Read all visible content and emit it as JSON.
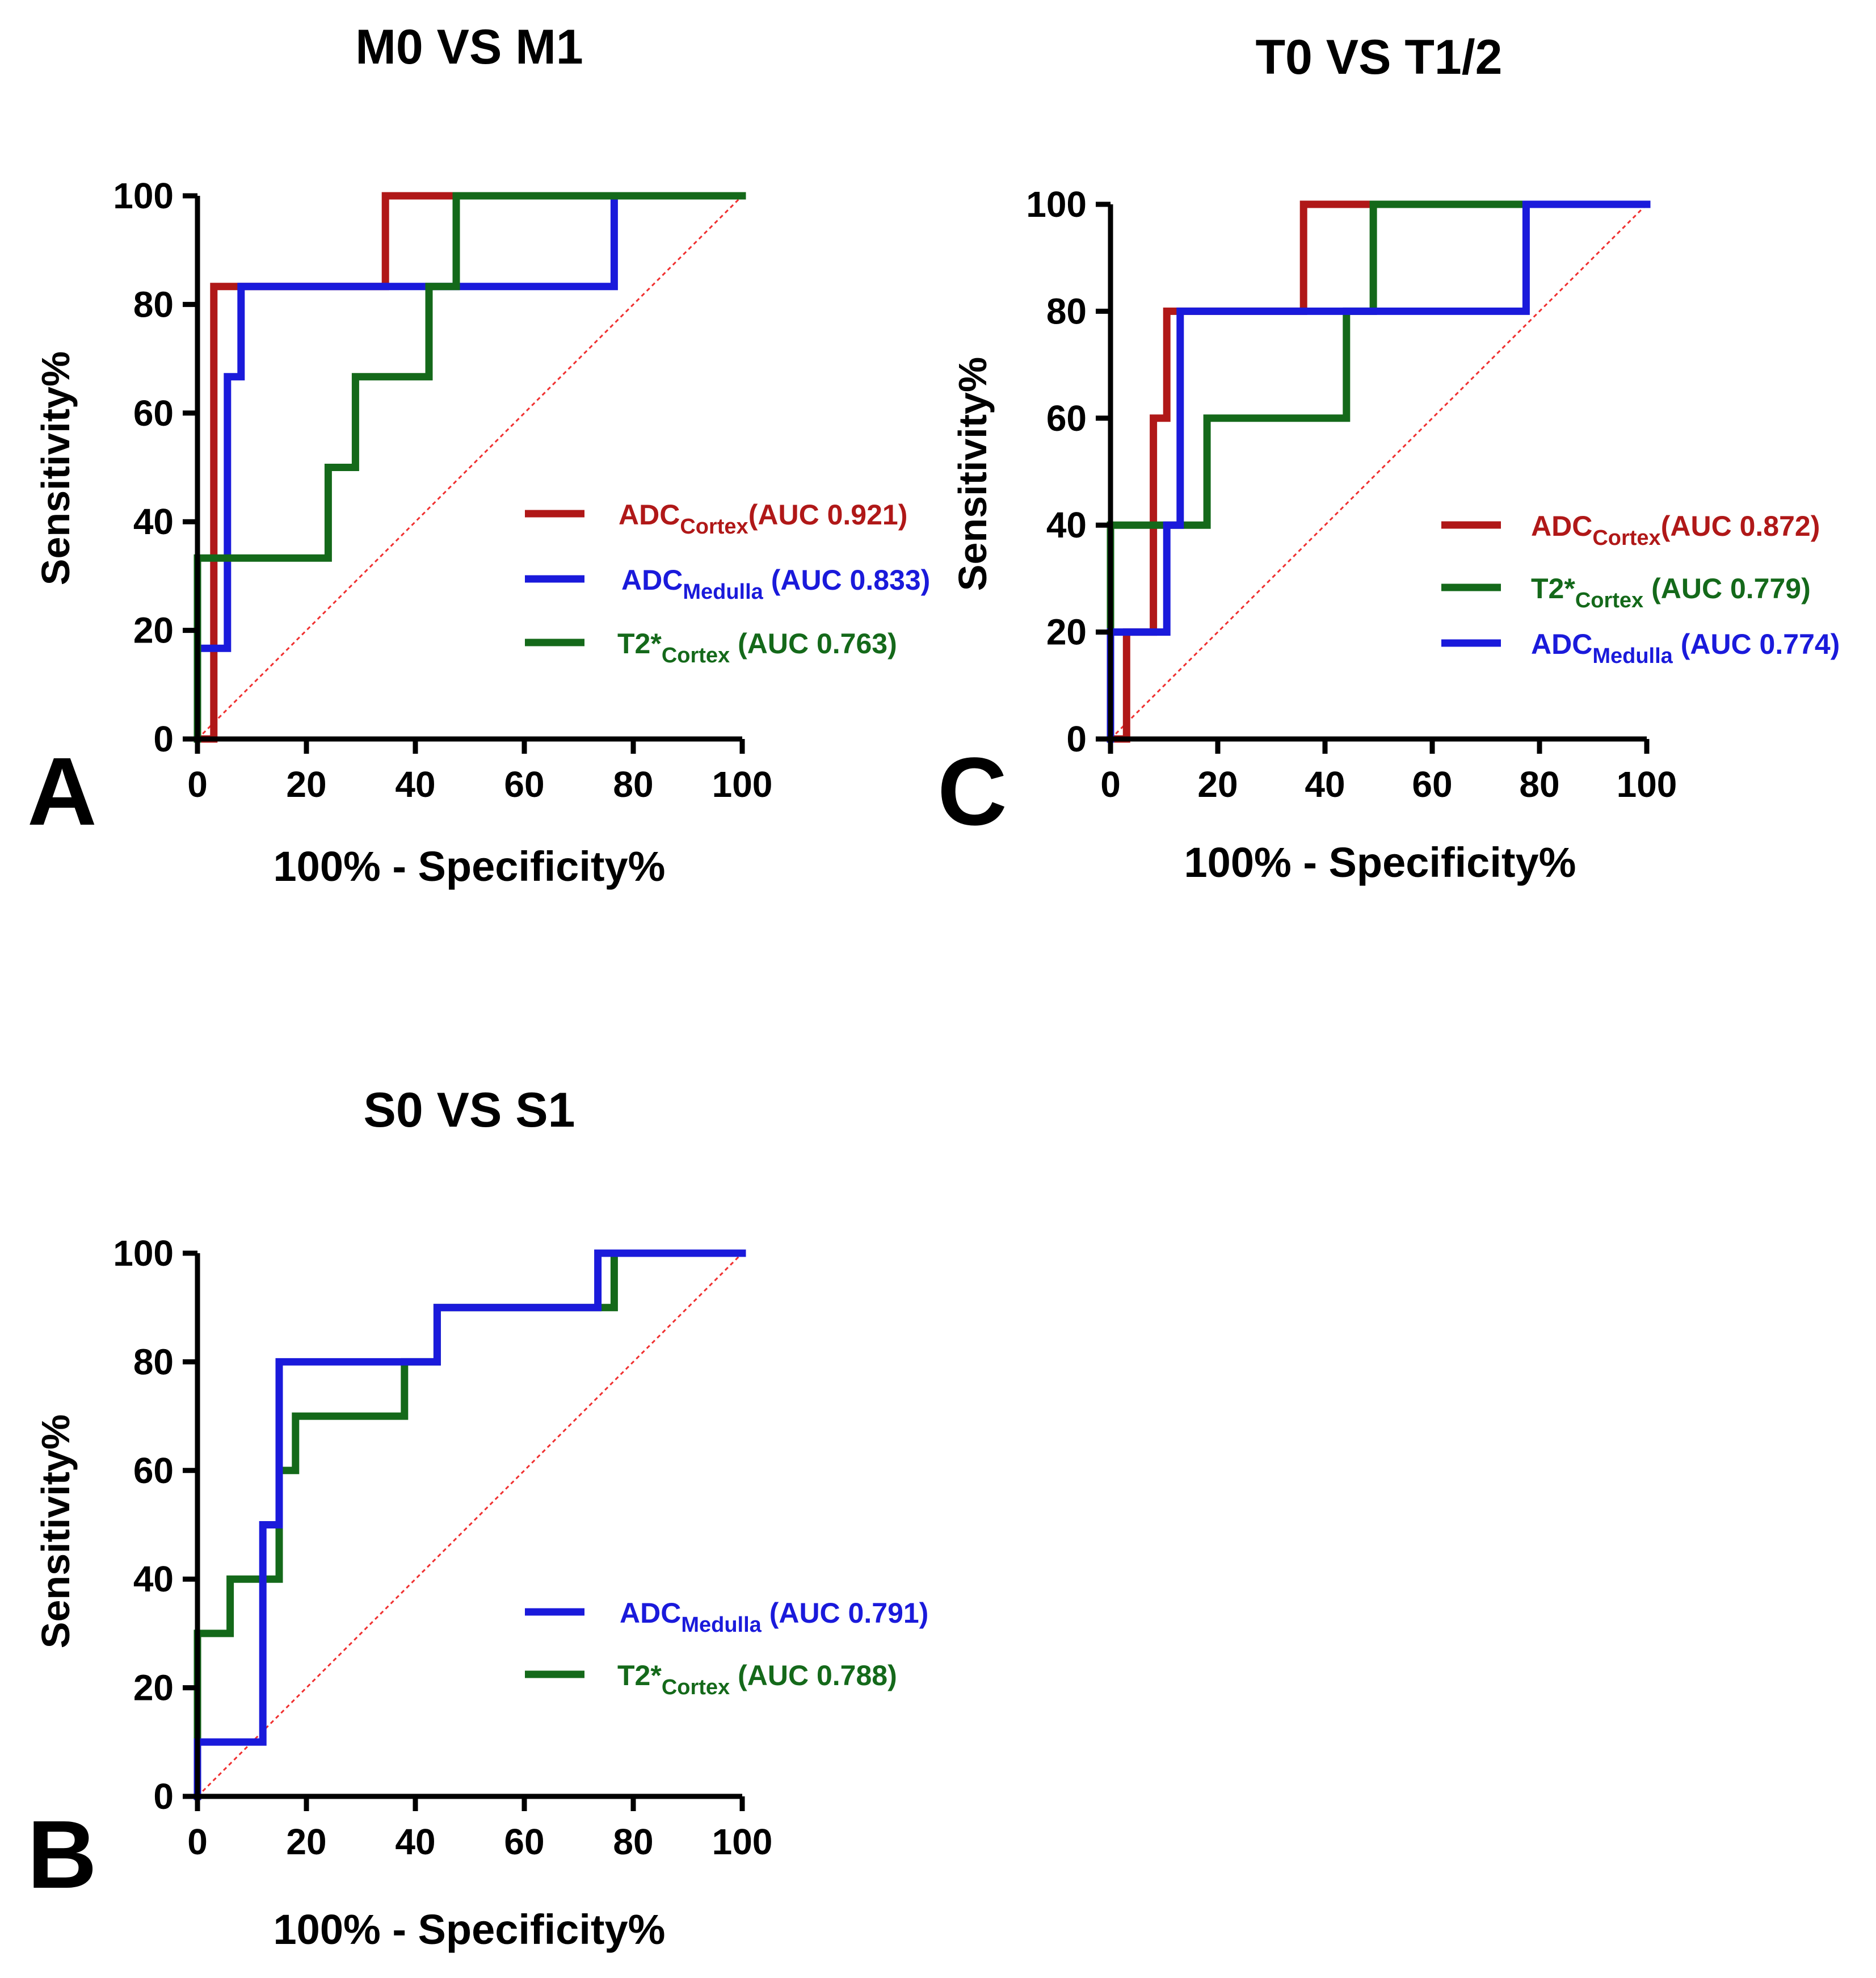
{
  "colors": {
    "red": "#b01818",
    "blue": "#1a1adb",
    "green": "#14691a",
    "diagonal": "#f03030",
    "axis": "#000000"
  },
  "chart_data": [
    {
      "id": "A",
      "type": "line",
      "panel_label": "A",
      "title": "M0 VS M1",
      "xlabel": "100% - Specificity%",
      "ylabel": "Sensitivity%",
      "xlim": [
        0,
        100
      ],
      "ylim": [
        0,
        100
      ],
      "xticks": [
        "0",
        "20",
        "40",
        "60",
        "80",
        "100"
      ],
      "yticks": [
        "0",
        "20",
        "40",
        "60",
        "80",
        "100"
      ],
      "reference_line": [
        [
          0,
          0
        ],
        [
          100,
          100
        ]
      ],
      "series": [
        {
          "key": "red",
          "legend_main": "ADC",
          "legend_sub": "Cortex",
          "legend_tail": "(AUC 0.921)",
          "points": [
            [
              0,
              0
            ],
            [
              3,
              0
            ],
            [
              3,
              83.3
            ],
            [
              34.5,
              83.3
            ],
            [
              34.5,
              100
            ],
            [
              100,
              100
            ]
          ]
        },
        {
          "key": "blue",
          "legend_main": "ADC",
          "legend_sub": "Medulla",
          "legend_tail": " (AUC 0.833)",
          "points": [
            [
              0,
              0
            ],
            [
              0,
              16.7
            ],
            [
              5.5,
              16.7
            ],
            [
              5.5,
              66.7
            ],
            [
              8,
              66.7
            ],
            [
              8,
              83.3
            ],
            [
              76.5,
              83.3
            ],
            [
              76.5,
              100
            ],
            [
              100,
              100
            ]
          ]
        },
        {
          "key": "green",
          "legend_main": "T2*",
          "legend_sub": "Cortex",
          "legend_tail": " (AUC 0.763)",
          "points": [
            [
              0,
              0
            ],
            [
              0,
              33.3
            ],
            [
              24,
              33.3
            ],
            [
              24,
              50
            ],
            [
              29,
              50
            ],
            [
              29,
              66.7
            ],
            [
              42.5,
              66.7
            ],
            [
              42.5,
              83.3
            ],
            [
              47.5,
              83.3
            ],
            [
              47.5,
              100
            ],
            [
              100,
              100
            ]
          ]
        }
      ]
    },
    {
      "id": "C",
      "type": "line",
      "panel_label": "C",
      "title": "T0 VS T1/2",
      "xlabel": "100% - Specificity%",
      "ylabel": "Sensitivity%",
      "xlim": [
        0,
        100
      ],
      "ylim": [
        0,
        100
      ],
      "xticks": [
        "0",
        "20",
        "40",
        "60",
        "80",
        "100"
      ],
      "yticks": [
        "0",
        "20",
        "40",
        "60",
        "80",
        "100"
      ],
      "reference_line": [
        [
          0,
          0
        ],
        [
          100,
          100
        ]
      ],
      "series": [
        {
          "key": "red",
          "legend_main": "ADC",
          "legend_sub": "Cortex",
          "legend_tail": "(AUC 0.872)",
          "points": [
            [
              0,
              0
            ],
            [
              3,
              0
            ],
            [
              3,
              20
            ],
            [
              8,
              20
            ],
            [
              8,
              60
            ],
            [
              10.5,
              60
            ],
            [
              10.5,
              80
            ],
            [
              36,
              80
            ],
            [
              36,
              100
            ],
            [
              100,
              100
            ]
          ]
        },
        {
          "key": "green",
          "legend_main": "T2*",
          "legend_sub": "Cortex",
          "legend_tail": " (AUC 0.779)",
          "points": [
            [
              0,
              0
            ],
            [
              0,
              40
            ],
            [
              18,
              40
            ],
            [
              18,
              60
            ],
            [
              44,
              60
            ],
            [
              44,
              80
            ],
            [
              49,
              80
            ],
            [
              49,
              100
            ],
            [
              100,
              100
            ]
          ]
        },
        {
          "key": "blue",
          "legend_main": "ADC",
          "legend_sub": "Medulla",
          "legend_tail": " (AUC 0.774)",
          "points": [
            [
              0,
              0
            ],
            [
              0,
              20
            ],
            [
              10.5,
              20
            ],
            [
              10.5,
              40
            ],
            [
              13,
              40
            ],
            [
              13,
              80
            ],
            [
              77.5,
              80
            ],
            [
              77.5,
              100
            ],
            [
              100,
              100
            ]
          ]
        }
      ]
    },
    {
      "id": "B",
      "type": "line",
      "panel_label": "B",
      "title": "S0 VS S1",
      "xlabel": "100% - Specificity%",
      "ylabel": "Sensitivity%",
      "xlim": [
        0,
        100
      ],
      "ylim": [
        0,
        100
      ],
      "xticks": [
        "0",
        "20",
        "40",
        "60",
        "80",
        "100"
      ],
      "yticks": [
        "0",
        "20",
        "40",
        "60",
        "80",
        "100"
      ],
      "reference_line": [
        [
          0,
          0
        ],
        [
          100,
          100
        ]
      ],
      "series": [
        {
          "key": "green",
          "legend_main": "T2*",
          "legend_sub": "Cortex",
          "legend_tail": " (AUC 0.788)",
          "points": [
            [
              0,
              0
            ],
            [
              0,
              30
            ],
            [
              6,
              30
            ],
            [
              6,
              40
            ],
            [
              15,
              40
            ],
            [
              15,
              60
            ],
            [
              18,
              60
            ],
            [
              18,
              70
            ],
            [
              38,
              70
            ],
            [
              38,
              80
            ],
            [
              44,
              80
            ],
            [
              44,
              90
            ],
            [
              76.5,
              90
            ],
            [
              76.5,
              100
            ],
            [
              100,
              100
            ]
          ]
        },
        {
          "key": "blue",
          "legend_main": "ADC",
          "legend_sub": "Medulla",
          "legend_tail": " (AUC 0.791)",
          "points": [
            [
              0,
              0
            ],
            [
              0,
              10
            ],
            [
              12,
              10
            ],
            [
              12,
              50
            ],
            [
              15,
              50
            ],
            [
              15,
              80
            ],
            [
              44,
              80
            ],
            [
              44,
              90
            ],
            [
              73.5,
              90
            ],
            [
              73.5,
              100
            ],
            [
              100,
              100
            ]
          ]
        }
      ]
    }
  ]
}
